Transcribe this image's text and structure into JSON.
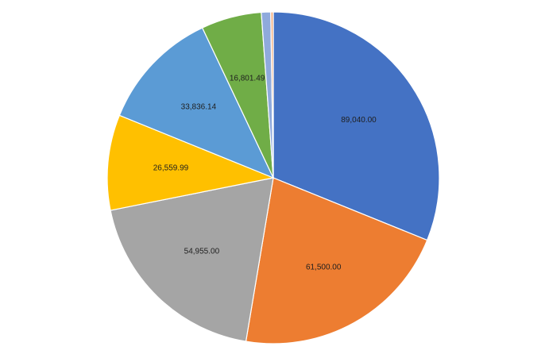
{
  "chart_data": {
    "type": "pie",
    "start_angle_deg": 0,
    "direction": "clockwise",
    "slices": [
      {
        "value": 89040.0,
        "label": "89,040.00",
        "color": "#4472C4"
      },
      {
        "value": 61500.0,
        "label": "61,500.00",
        "color": "#ED7D31"
      },
      {
        "value": 54955.0,
        "label": "54,955.00",
        "color": "#A5A5A5"
      },
      {
        "value": 26559.99,
        "label": "26,559.99",
        "color": "#FFC000"
      },
      {
        "value": 33836.14,
        "label": "33,836.14",
        "color": "#5B9BD5"
      },
      {
        "value": 16801.49,
        "label": "16,801.49",
        "color": "#70AD47"
      },
      {
        "value": 2600,
        "label": "",
        "color": "#8FAADC"
      },
      {
        "value": 700,
        "label": "",
        "color": "#F4B183"
      }
    ]
  }
}
